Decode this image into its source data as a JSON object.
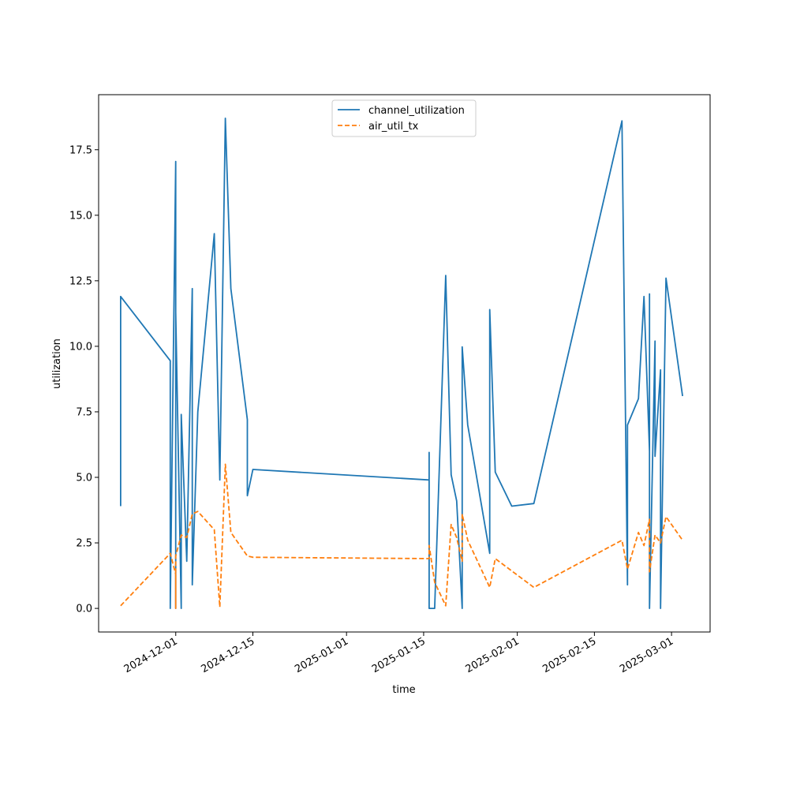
{
  "chart_data": {
    "type": "line",
    "title": "",
    "xlabel": "time",
    "ylabel": "utilization",
    "x_tick_labels": [
      "2024-12-01",
      "2024-12-15",
      "2025-01-01",
      "2025-01-15",
      "2025-02-01",
      "2025-02-15",
      "2025-03-01"
    ],
    "y_tick_labels": [
      "0.0",
      "2.5",
      "5.0",
      "7.5",
      "10.0",
      "12.5",
      "15.0",
      "17.5"
    ],
    "ylim": [
      -0.9,
      19.6
    ],
    "xlim": [
      "2024-11-17",
      "2025-03-08"
    ],
    "grid": false,
    "legend_position": "top-center",
    "series": [
      {
        "name": "channel_utilization",
        "color": "#1f77b4",
        "dash": "solid",
        "points": [
          [
            "2024-11-21",
            3.9
          ],
          [
            "2024-11-21",
            11.9
          ],
          [
            "2024-11-30",
            9.45
          ],
          [
            "2024-11-30",
            0.0
          ],
          [
            "2024-12-01",
            17.05
          ],
          [
            "2024-12-01",
            0.0
          ],
          [
            "2024-12-01",
            11.3
          ],
          [
            "2024-12-02",
            0.0
          ],
          [
            "2024-12-02",
            7.4
          ],
          [
            "2024-12-03",
            1.8
          ],
          [
            "2024-12-04",
            12.2
          ],
          [
            "2024-12-04",
            0.9
          ],
          [
            "2024-12-05",
            7.5
          ],
          [
            "2024-12-08",
            14.3
          ],
          [
            "2024-12-09",
            4.9
          ],
          [
            "2024-12-10",
            18.7
          ],
          [
            "2024-12-11",
            12.2
          ],
          [
            "2024-12-14",
            7.2
          ],
          [
            "2024-12-14",
            4.3
          ],
          [
            "2024-12-15",
            5.3
          ],
          [
            "2025-01-16",
            4.9
          ],
          [
            "2025-01-16",
            5.95
          ],
          [
            "2025-01-16",
            0.0
          ],
          [
            "2025-01-17",
            0.0
          ],
          [
            "2025-01-19",
            12.7
          ],
          [
            "2025-01-20",
            5.1
          ],
          [
            "2025-01-21",
            4.1
          ],
          [
            "2025-01-22",
            0.0
          ],
          [
            "2025-01-22",
            9.98
          ],
          [
            "2025-01-23",
            7.0
          ],
          [
            "2025-01-27",
            2.1
          ],
          [
            "2025-01-27",
            11.4
          ],
          [
            "2025-01-28",
            5.2
          ],
          [
            "2025-01-31",
            3.9
          ],
          [
            "2025-02-04",
            4.0
          ],
          [
            "2025-02-20",
            18.6
          ],
          [
            "2025-02-21",
            0.9
          ],
          [
            "2025-02-21",
            7.0
          ],
          [
            "2025-02-23",
            8.0
          ],
          [
            "2025-02-24",
            11.9
          ],
          [
            "2025-02-25",
            6.0
          ],
          [
            "2025-02-25",
            12.0
          ],
          [
            "2025-02-25",
            0.0
          ],
          [
            "2025-02-26",
            10.2
          ],
          [
            "2025-02-26",
            5.8
          ],
          [
            "2025-02-27",
            9.1
          ],
          [
            "2025-02-27",
            0.0
          ],
          [
            "2025-02-28",
            12.6
          ],
          [
            "2025-03-03",
            8.1
          ]
        ]
      },
      {
        "name": "air_util_tx",
        "color": "#ff7f0e",
        "dash": "dashed",
        "points": [
          [
            "2024-11-21",
            0.1
          ],
          [
            "2024-11-30",
            2.1
          ],
          [
            "2024-12-01",
            1.3
          ],
          [
            "2024-12-01",
            0.0
          ],
          [
            "2024-12-01",
            2.0
          ],
          [
            "2024-12-02",
            2.8
          ],
          [
            "2024-12-03",
            2.7
          ],
          [
            "2024-12-04",
            3.6
          ],
          [
            "2024-12-05",
            3.7
          ],
          [
            "2024-12-08",
            3.0
          ],
          [
            "2024-12-09",
            0.05
          ],
          [
            "2024-12-10",
            5.5
          ],
          [
            "2024-12-11",
            2.9
          ],
          [
            "2024-12-14",
            2.0
          ],
          [
            "2024-12-15",
            1.95
          ],
          [
            "2025-01-16",
            1.9
          ],
          [
            "2025-01-16",
            2.4
          ],
          [
            "2025-01-17",
            1.0
          ],
          [
            "2025-01-19",
            0.1
          ],
          [
            "2025-01-20",
            3.2
          ],
          [
            "2025-01-21",
            2.7
          ],
          [
            "2025-01-22",
            1.8
          ],
          [
            "2025-01-22",
            3.6
          ],
          [
            "2025-01-23",
            2.6
          ],
          [
            "2025-01-27",
            0.8
          ],
          [
            "2025-01-28",
            1.9
          ],
          [
            "2025-02-04",
            0.8
          ],
          [
            "2025-02-20",
            2.6
          ],
          [
            "2025-02-21",
            1.5
          ],
          [
            "2025-02-23",
            2.9
          ],
          [
            "2025-02-24",
            2.4
          ],
          [
            "2025-02-25",
            3.4
          ],
          [
            "2025-02-25",
            1.4
          ],
          [
            "2025-02-26",
            2.8
          ],
          [
            "2025-02-27",
            2.5
          ],
          [
            "2025-02-28",
            3.5
          ],
          [
            "2025-03-03",
            2.6
          ]
        ]
      }
    ]
  }
}
